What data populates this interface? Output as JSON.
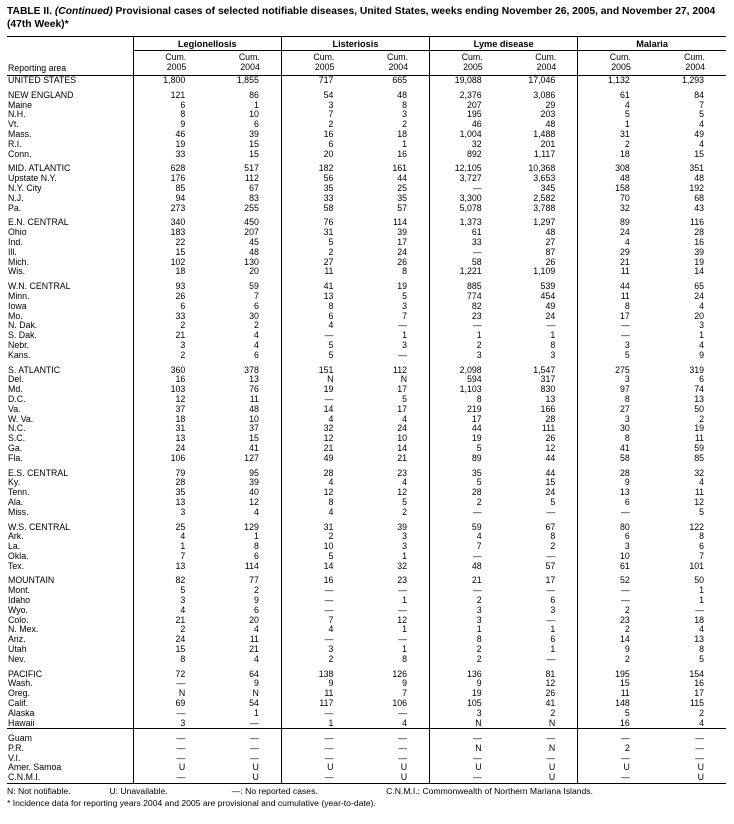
{
  "title": {
    "part1": "TABLE II.",
    "part2": "(Continued)",
    "part3": "Provisional cases of selected notifiable diseases, United States, weeks ending November 26, 2005, and November 27, 2004 (47th Week)*"
  },
  "table": {
    "reporting_area_label": "Reporting area",
    "groups": [
      "Legionellosis",
      "Listeriosis",
      "Lyme disease",
      "Malaria"
    ],
    "subheader": {
      "line1": "Cum.",
      "years": [
        "2005",
        "2004",
        "2005",
        "2004",
        "2005",
        "2004",
        "2005",
        "2004"
      ]
    },
    "sections": [
      {
        "rows": [
          [
            "UNITED STATES",
            "1,800",
            "1,855",
            "717",
            "665",
            "19,088",
            "17,046",
            "1,132",
            "1,293"
          ]
        ]
      },
      {
        "rows": [
          [
            "NEW ENGLAND",
            "121",
            "86",
            "54",
            "48",
            "2,376",
            "3,086",
            "61",
            "84"
          ],
          [
            "Maine",
            "6",
            "1",
            "3",
            "8",
            "207",
            "29",
            "4",
            "7"
          ],
          [
            "N.H.",
            "8",
            "10",
            "7",
            "3",
            "195",
            "203",
            "5",
            "5"
          ],
          [
            "Vt.",
            "9",
            "6",
            "2",
            "2",
            "46",
            "48",
            "1",
            "4"
          ],
          [
            "Mass.",
            "46",
            "39",
            "16",
            "18",
            "1,004",
            "1,488",
            "31",
            "49"
          ],
          [
            "R.I.",
            "19",
            "15",
            "6",
            "1",
            "32",
            "201",
            "2",
            "4"
          ],
          [
            "Conn.",
            "33",
            "15",
            "20",
            "16",
            "892",
            "1,117",
            "18",
            "15"
          ]
        ]
      },
      {
        "rows": [
          [
            "MID. ATLANTIC",
            "628",
            "517",
            "182",
            "161",
            "12,105",
            "10,368",
            "308",
            "351"
          ],
          [
            "Upstate N.Y.",
            "176",
            "112",
            "56",
            "44",
            "3,727",
            "3,653",
            "48",
            "48"
          ],
          [
            "N.Y. City",
            "85",
            "67",
            "35",
            "25",
            "—",
            "345",
            "158",
            "192"
          ],
          [
            "N.J.",
            "94",
            "83",
            "33",
            "35",
            "3,300",
            "2,582",
            "70",
            "68"
          ],
          [
            "Pa.",
            "273",
            "255",
            "58",
            "57",
            "5,078",
            "3,788",
            "32",
            "43"
          ]
        ]
      },
      {
        "rows": [
          [
            "E.N. CENTRAL",
            "340",
            "450",
            "76",
            "114",
            "1,373",
            "1,297",
            "89",
            "116"
          ],
          [
            "Ohio",
            "183",
            "207",
            "31",
            "39",
            "61",
            "48",
            "24",
            "28"
          ],
          [
            "Ind.",
            "22",
            "45",
            "5",
            "17",
            "33",
            "27",
            "4",
            "16"
          ],
          [
            "Ill.",
            "15",
            "48",
            "2",
            "24",
            "—",
            "87",
            "29",
            "39"
          ],
          [
            "Mich.",
            "102",
            "130",
            "27",
            "26",
            "58",
            "26",
            "21",
            "19"
          ],
          [
            "Wis.",
            "18",
            "20",
            "11",
            "8",
            "1,221",
            "1,109",
            "11",
            "14"
          ]
        ]
      },
      {
        "rows": [
          [
            "W.N. CENTRAL",
            "93",
            "59",
            "41",
            "19",
            "885",
            "539",
            "44",
            "65"
          ],
          [
            "Minn.",
            "26",
            "7",
            "13",
            "5",
            "774",
            "454",
            "11",
            "24"
          ],
          [
            "Iowa",
            "6",
            "6",
            "8",
            "3",
            "82",
            "49",
            "8",
            "4"
          ],
          [
            "Mo.",
            "33",
            "30",
            "6",
            "7",
            "23",
            "24",
            "17",
            "20"
          ],
          [
            "N. Dak.",
            "2",
            "2",
            "4",
            "—",
            "—",
            "—",
            "—",
            "3"
          ],
          [
            "S. Dak.",
            "21",
            "4",
            "—",
            "1",
            "1",
            "1",
            "—",
            "1"
          ],
          [
            "Nebr.",
            "3",
            "4",
            "5",
            "3",
            "2",
            "8",
            "3",
            "4"
          ],
          [
            "Kans.",
            "2",
            "6",
            "5",
            "—",
            "3",
            "3",
            "5",
            "9"
          ]
        ]
      },
      {
        "rows": [
          [
            "S. ATLANTIC",
            "360",
            "378",
            "151",
            "112",
            "2,098",
            "1,547",
            "275",
            "319"
          ],
          [
            "Del.",
            "16",
            "13",
            "N",
            "N",
            "594",
            "317",
            "3",
            "6"
          ],
          [
            "Md.",
            "103",
            "76",
            "19",
            "17",
            "1,103",
            "830",
            "97",
            "74"
          ],
          [
            "D.C.",
            "12",
            "11",
            "—",
            "5",
            "8",
            "13",
            "8",
            "13"
          ],
          [
            "Va.",
            "37",
            "48",
            "14",
            "17",
            "219",
            "166",
            "27",
            "50"
          ],
          [
            "W. Va.",
            "18",
            "10",
            "4",
            "4",
            "17",
            "28",
            "3",
            "2"
          ],
          [
            "N.C.",
            "31",
            "37",
            "32",
            "24",
            "44",
            "111",
            "30",
            "19"
          ],
          [
            "S.C.",
            "13",
            "15",
            "12",
            "10",
            "19",
            "26",
            "8",
            "11"
          ],
          [
            "Ga.",
            "24",
            "41",
            "21",
            "14",
            "5",
            "12",
            "41",
            "59"
          ],
          [
            "Fla.",
            "106",
            "127",
            "49",
            "21",
            "89",
            "44",
            "58",
            "85"
          ]
        ]
      },
      {
        "rows": [
          [
            "E.S. CENTRAL",
            "79",
            "95",
            "28",
            "23",
            "35",
            "44",
            "28",
            "32"
          ],
          [
            "Ky.",
            "28",
            "39",
            "4",
            "4",
            "5",
            "15",
            "9",
            "4"
          ],
          [
            "Tenn.",
            "35",
            "40",
            "12",
            "12",
            "28",
            "24",
            "13",
            "11"
          ],
          [
            "Ala.",
            "13",
            "12",
            "8",
            "5",
            "2",
            "5",
            "6",
            "12"
          ],
          [
            "Miss.",
            "3",
            "4",
            "4",
            "2",
            "—",
            "—",
            "—",
            "5"
          ]
        ]
      },
      {
        "rows": [
          [
            "W.S. CENTRAL",
            "25",
            "129",
            "31",
            "39",
            "59",
            "67",
            "80",
            "122"
          ],
          [
            "Ark.",
            "4",
            "1",
            "2",
            "3",
            "4",
            "8",
            "6",
            "8"
          ],
          [
            "La.",
            "1",
            "8",
            "10",
            "3",
            "7",
            "2",
            "3",
            "6"
          ],
          [
            "Okla.",
            "7",
            "6",
            "5",
            "1",
            "—",
            "—",
            "10",
            "7"
          ],
          [
            "Tex.",
            "13",
            "114",
            "14",
            "32",
            "48",
            "57",
            "61",
            "101"
          ]
        ]
      },
      {
        "rows": [
          [
            "MOUNTAIN",
            "82",
            "77",
            "16",
            "23",
            "21",
            "17",
            "52",
            "50"
          ],
          [
            "Mont.",
            "5",
            "2",
            "—",
            "—",
            "—",
            "—",
            "—",
            "1"
          ],
          [
            "Idaho",
            "3",
            "9",
            "—",
            "1",
            "2",
            "6",
            "—",
            "1"
          ],
          [
            "Wyo.",
            "4",
            "6",
            "—",
            "—",
            "3",
            "3",
            "2",
            "—"
          ],
          [
            "Colo.",
            "21",
            "20",
            "7",
            "12",
            "3",
            "—",
            "23",
            "18"
          ],
          [
            "N. Mex.",
            "2",
            "4",
            "4",
            "1",
            "1",
            "1",
            "2",
            "4"
          ],
          [
            "Ariz.",
            "24",
            "11",
            "—",
            "—",
            "8",
            "6",
            "14",
            "13"
          ],
          [
            "Utah",
            "15",
            "21",
            "3",
            "1",
            "2",
            "1",
            "9",
            "8"
          ],
          [
            "Nev.",
            "8",
            "4",
            "2",
            "8",
            "2",
            "—",
            "2",
            "5"
          ]
        ]
      },
      {
        "rows": [
          [
            "PACIFIC",
            "72",
            "64",
            "138",
            "126",
            "136",
            "81",
            "195",
            "154"
          ],
          [
            "Wash.",
            "—",
            "9",
            "9",
            "9",
            "9",
            "12",
            "15",
            "16"
          ],
          [
            "Oreg.",
            "N",
            "N",
            "11",
            "7",
            "19",
            "26",
            "11",
            "17"
          ],
          [
            "Calif.",
            "69",
            "54",
            "117",
            "106",
            "105",
            "41",
            "148",
            "115"
          ],
          [
            "Alaska",
            "—",
            "1",
            "—",
            "—",
            "3",
            "2",
            "5",
            "2"
          ],
          [
            "Hawaii",
            "3",
            "—",
            "1",
            "4",
            "N",
            "N",
            "16",
            "4"
          ]
        ]
      },
      {
        "rule_above": true,
        "rows": [
          [
            "Guam",
            "—",
            "—",
            "—",
            "—",
            "—",
            "—",
            "—",
            "—"
          ],
          [
            "P.R.",
            "—",
            "—",
            "—",
            "—",
            "N",
            "N",
            "2",
            "—"
          ],
          [
            "V.I.",
            "—",
            "—",
            "—",
            "—",
            "—",
            "—",
            "—",
            "—"
          ],
          [
            "Amer. Samoa",
            "U",
            "U",
            "U",
            "U",
            "U",
            "U",
            "U",
            "U"
          ],
          [
            "C.N.M.I.",
            "—",
            "U",
            "—",
            "U",
            "—",
            "U",
            "—",
            "U"
          ]
        ]
      }
    ]
  },
  "footnotes": {
    "line1": [
      "N: Not notifiable.",
      "U: Unavailable.",
      "—: No reported cases.",
      "C.N.M.I.: Commonwealth of Northern Mariana Islands."
    ],
    "line2": "* Incidence data for reporting years 2004 and 2005 are provisional and cumulative (year-to-date)."
  }
}
